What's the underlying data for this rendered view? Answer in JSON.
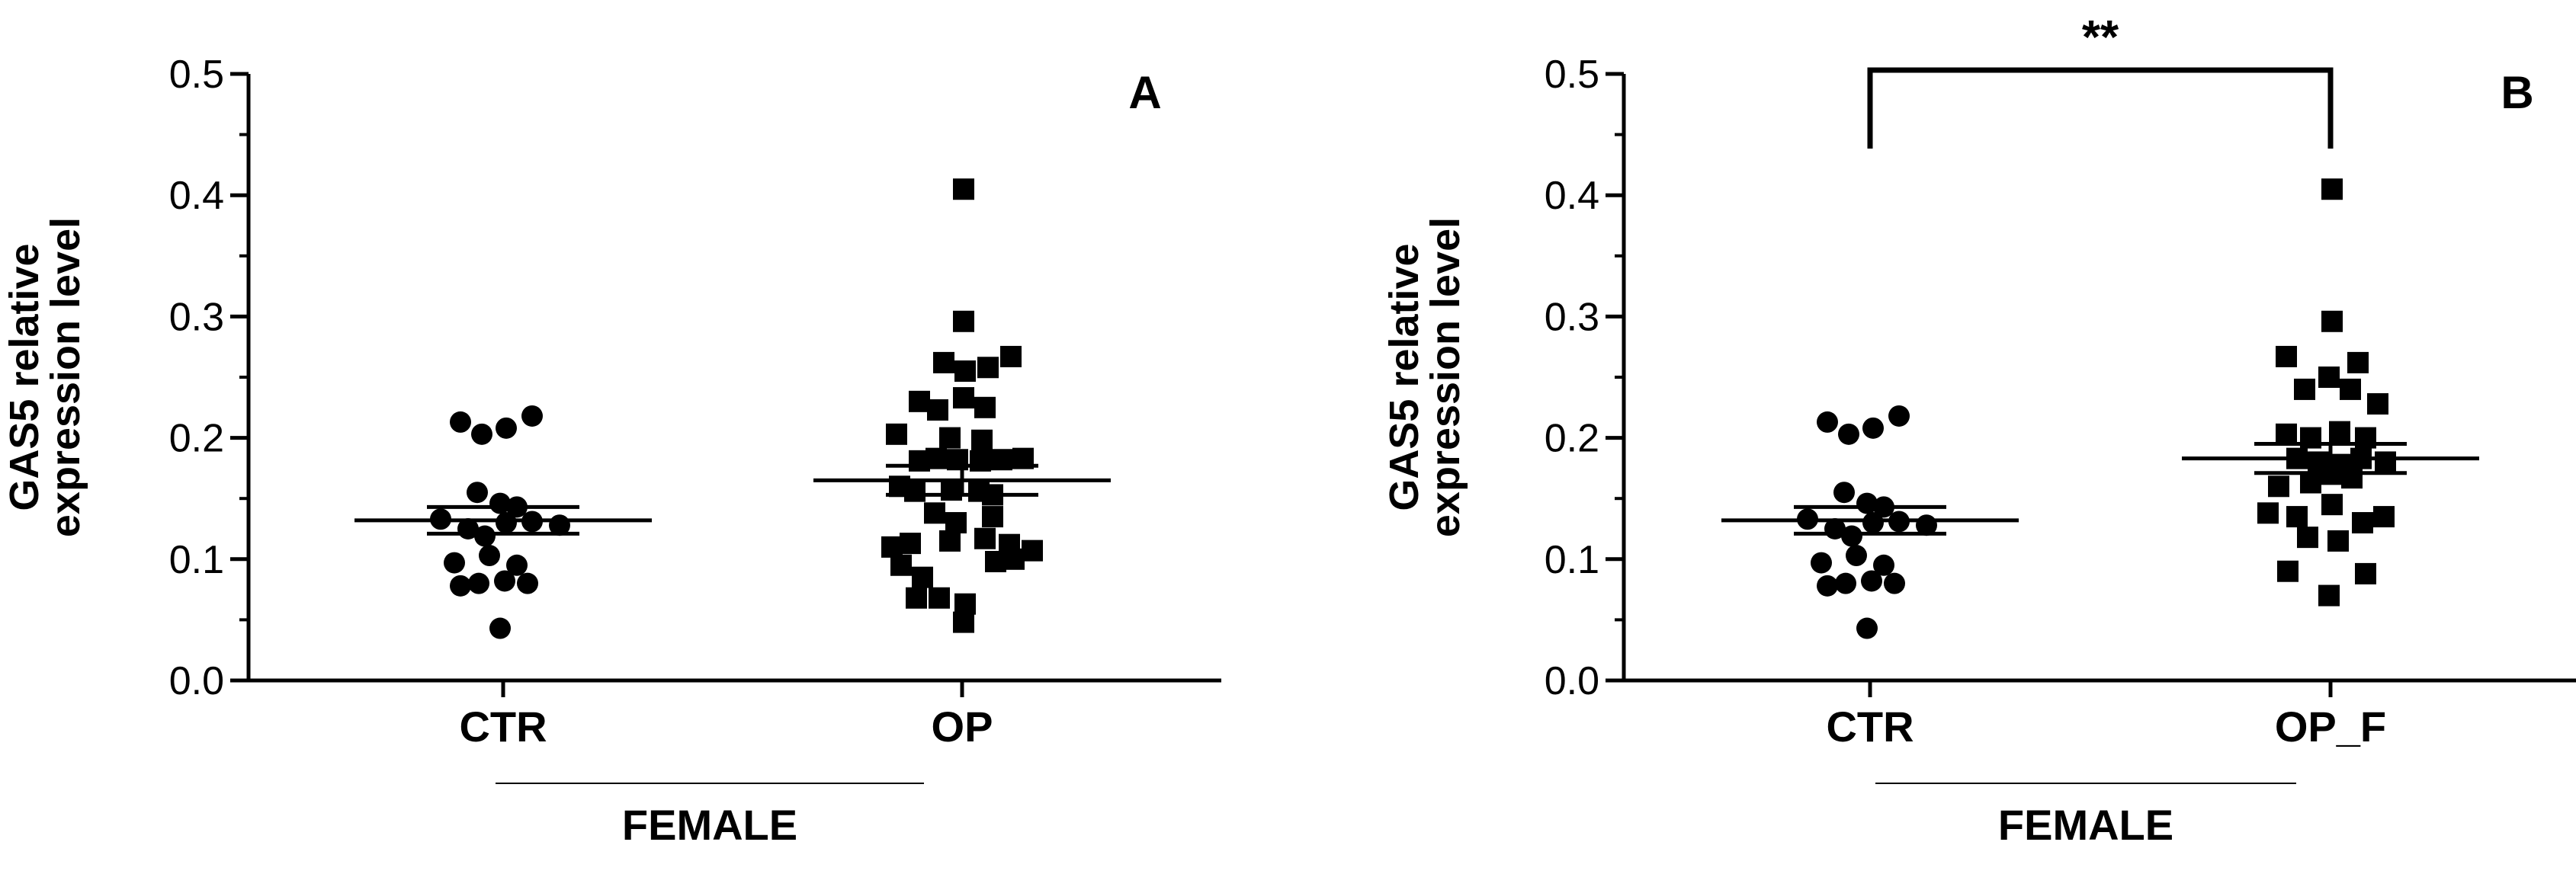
{
  "chart_data": [
    {
      "type": "scatter",
      "panel_label": "A",
      "ylabel_lines": [
        "GAS5 relative",
        "expression level"
      ],
      "ylim": [
        0,
        0.5
      ],
      "yticks": [
        "0.0",
        "0.1",
        "0.2",
        "0.3",
        "0.4",
        "0.5"
      ],
      "categories": [
        "CTR",
        "OP"
      ],
      "group_label": "FEMALE",
      "grid": false,
      "series": [
        {
          "category": "CTR",
          "marker": "circle",
          "mean": 0.132,
          "sem": 0.011,
          "points": [
            [
              -0.56,
              0.213
            ],
            [
              -0.28,
              0.203
            ],
            [
              0.04,
              0.208
            ],
            [
              0.38,
              0.218
            ],
            [
              -0.34,
              0.155
            ],
            [
              -0.04,
              0.146
            ],
            [
              0.18,
              0.143
            ],
            [
              -0.82,
              0.133
            ],
            [
              -0.46,
              0.125
            ],
            [
              -0.24,
              0.119
            ],
            [
              0.04,
              0.13
            ],
            [
              0.38,
              0.131
            ],
            [
              0.74,
              0.128
            ],
            [
              -0.64,
              0.097
            ],
            [
              -0.18,
              0.103
            ],
            [
              0.18,
              0.095
            ],
            [
              -0.56,
              0.078
            ],
            [
              -0.32,
              0.08
            ],
            [
              0.02,
              0.082
            ],
            [
              0.32,
              0.08
            ],
            [
              -0.04,
              0.043
            ]
          ]
        },
        {
          "category": "OP",
          "marker": "square",
          "mean": 0.165,
          "sem": 0.012,
          "points": [
            [
              0.02,
              0.405
            ],
            [
              0.02,
              0.296
            ],
            [
              -0.24,
              0.262
            ],
            [
              0.04,
              0.255
            ],
            [
              0.34,
              0.258
            ],
            [
              0.64,
              0.267
            ],
            [
              -0.56,
              0.23
            ],
            [
              -0.32,
              0.223
            ],
            [
              0.02,
              0.233
            ],
            [
              0.3,
              0.225
            ],
            [
              -0.86,
              0.203
            ],
            [
              -0.16,
              0.2
            ],
            [
              0.26,
              0.198
            ],
            [
              -0.56,
              0.181
            ],
            [
              -0.34,
              0.183
            ],
            [
              -0.06,
              0.182
            ],
            [
              0.24,
              0.181
            ],
            [
              0.52,
              0.182
            ],
            [
              0.8,
              0.183
            ],
            [
              -0.82,
              0.16
            ],
            [
              -0.62,
              0.156
            ],
            [
              -0.14,
              0.157
            ],
            [
              0.22,
              0.156
            ],
            [
              0.4,
              0.153
            ],
            [
              -0.36,
              0.138
            ],
            [
              -0.08,
              0.13
            ],
            [
              0.4,
              0.135
            ],
            [
              -0.92,
              0.11
            ],
            [
              -0.68,
              0.113
            ],
            [
              -0.16,
              0.115
            ],
            [
              0.3,
              0.117
            ],
            [
              0.62,
              0.112
            ],
            [
              0.92,
              0.107
            ],
            [
              -0.8,
              0.095
            ],
            [
              -0.52,
              0.085
            ],
            [
              0.44,
              0.098
            ],
            [
              0.68,
              0.1
            ],
            [
              -0.6,
              0.068
            ],
            [
              -0.3,
              0.068
            ],
            [
              0.04,
              0.063
            ],
            [
              0.02,
              0.048
            ]
          ]
        }
      ]
    },
    {
      "type": "scatter",
      "panel_label": "B",
      "ylabel_lines": [
        "GAS5 relative",
        "expression level"
      ],
      "ylim": [
        0,
        0.5
      ],
      "yticks": [
        "0.0",
        "0.1",
        "0.2",
        "0.3",
        "0.4",
        "0.5"
      ],
      "categories": [
        "CTR",
        "OP_F"
      ],
      "group_label": "FEMALE",
      "grid": false,
      "significance": {
        "label": "**",
        "between": [
          "CTR",
          "OP_F"
        ]
      },
      "series": [
        {
          "category": "CTR",
          "marker": "circle",
          "mean": 0.132,
          "sem": 0.011,
          "points": [
            [
              -0.56,
              0.213
            ],
            [
              -0.28,
              0.203
            ],
            [
              0.04,
              0.208
            ],
            [
              0.38,
              0.218
            ],
            [
              -0.34,
              0.155
            ],
            [
              -0.04,
              0.146
            ],
            [
              0.18,
              0.143
            ],
            [
              -0.82,
              0.133
            ],
            [
              -0.46,
              0.125
            ],
            [
              -0.24,
              0.119
            ],
            [
              0.04,
              0.13
            ],
            [
              0.38,
              0.131
            ],
            [
              0.74,
              0.128
            ],
            [
              -0.64,
              0.097
            ],
            [
              -0.18,
              0.103
            ],
            [
              0.18,
              0.095
            ],
            [
              -0.56,
              0.078
            ],
            [
              -0.32,
              0.08
            ],
            [
              0.02,
              0.082
            ],
            [
              0.32,
              0.08
            ],
            [
              -0.04,
              0.043
            ]
          ]
        },
        {
          "category": "OP_F",
          "marker": "square",
          "mean": 0.183,
          "sem": 0.012,
          "points": [
            [
              0.02,
              0.405
            ],
            [
              0.02,
              0.296
            ],
            [
              -0.58,
              0.267
            ],
            [
              0.36,
              0.262
            ],
            [
              -0.02,
              0.25
            ],
            [
              -0.34,
              0.24
            ],
            [
              0.26,
              0.24
            ],
            [
              0.62,
              0.228
            ],
            [
              -0.58,
              0.203
            ],
            [
              -0.26,
              0.2
            ],
            [
              0.12,
              0.205
            ],
            [
              0.46,
              0.2
            ],
            [
              -0.44,
              0.183
            ],
            [
              -0.16,
              0.18
            ],
            [
              0.14,
              0.178
            ],
            [
              0.4,
              0.183
            ],
            [
              0.72,
              0.18
            ],
            [
              -0.68,
              0.16
            ],
            [
              -0.26,
              0.163
            ],
            [
              0.02,
              0.17
            ],
            [
              0.28,
              0.167
            ],
            [
              -0.82,
              0.138
            ],
            [
              -0.44,
              0.135
            ],
            [
              0.02,
              0.145
            ],
            [
              0.42,
              0.13
            ],
            [
              0.7,
              0.135
            ],
            [
              -0.3,
              0.118
            ],
            [
              0.1,
              0.115
            ],
            [
              -0.56,
              0.09
            ],
            [
              0.46,
              0.088
            ],
            [
              -0.02,
              0.07
            ]
          ]
        }
      ]
    }
  ]
}
